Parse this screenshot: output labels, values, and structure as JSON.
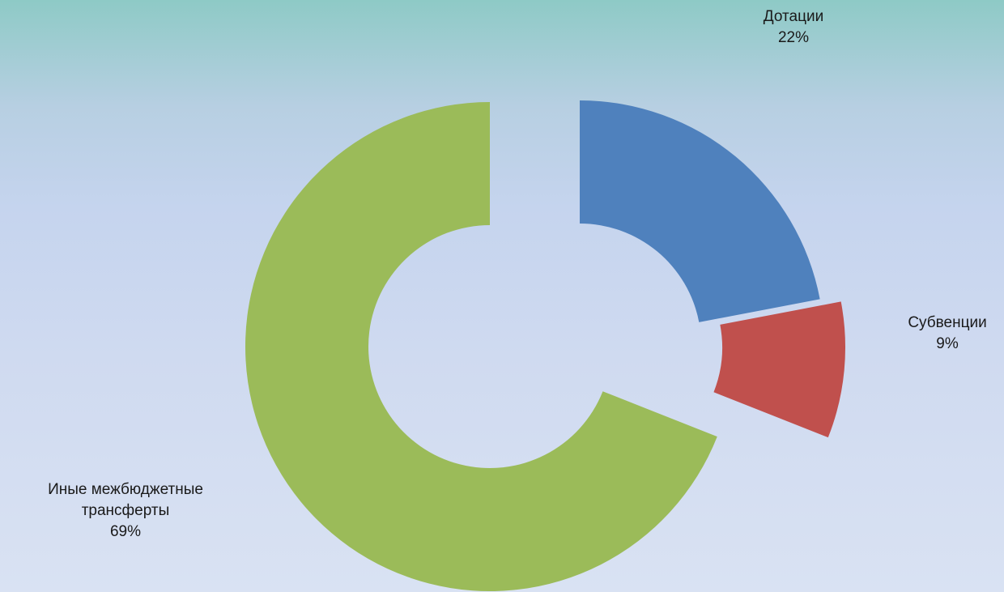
{
  "chart_data": {
    "type": "pie",
    "subtype": "exploded-donut",
    "series": [
      {
        "slices": [
          {
            "name": "Дотации",
            "value": 22,
            "label": "22%",
            "color": "#4f81bd"
          },
          {
            "name": "Субвенции",
            "value": 9,
            "label": "9%",
            "color": "#c0504d"
          },
          {
            "name": "Иные межбюджетные трансферты",
            "value": 69,
            "label": "69%",
            "color": "#9bbb59"
          }
        ]
      }
    ],
    "labels": {
      "s0": {
        "line1": "Дотации",
        "pct": "22%"
      },
      "s1": {
        "line1": "Субвенции",
        "pct": "9%"
      },
      "s2": {
        "line1": "Иные межбюджетные",
        "line2": "трансферты",
        "pct": "69%"
      }
    }
  }
}
